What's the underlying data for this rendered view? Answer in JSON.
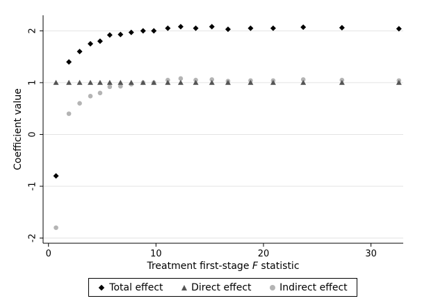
{
  "chart_data": {
    "type": "scatter",
    "title": "",
    "ylabel": "Coefficient value",
    "xlabel_parts": [
      "Treatment first-stage ",
      "F",
      " statistic"
    ],
    "xlim": [
      -0.5,
      33
    ],
    "ylim": [
      -2.1,
      2.3
    ],
    "x_ticks": [
      0,
      10,
      20,
      30
    ],
    "x_tick_labels": [
      "0",
      "10",
      "20",
      "30"
    ],
    "y_ticks": [
      -2,
      -1,
      0,
      1,
      2
    ],
    "y_tick_labels": [
      "-2",
      "-1",
      "0",
      "1",
      "2"
    ],
    "grid": "horizontal",
    "legend_position": "bottom",
    "x": [
      0.7,
      1.9,
      2.9,
      3.9,
      4.8,
      5.7,
      6.7,
      7.7,
      8.8,
      9.8,
      11.1,
      12.3,
      13.7,
      15.2,
      16.7,
      18.8,
      20.9,
      23.7,
      27.3,
      32.6
    ],
    "series": [
      {
        "name": "Total effect",
        "marker": "diamond",
        "color": "#000000",
        "values": [
          -0.8,
          1.4,
          1.6,
          1.75,
          1.8,
          1.92,
          1.93,
          1.97,
          2.0,
          2.0,
          2.05,
          2.08,
          2.05,
          2.08,
          2.03,
          2.05,
          2.05,
          2.07,
          2.06,
          2.04
        ]
      },
      {
        "name": "Direct effect",
        "marker": "triangle",
        "color": "#555555",
        "values": [
          1.0,
          1.0,
          1.0,
          1.0,
          1.0,
          1.0,
          1.0,
          1.0,
          1.0,
          1.0,
          1.0,
          1.0,
          1.0,
          1.0,
          1.0,
          1.0,
          1.0,
          1.0,
          1.0,
          1.0
        ]
      },
      {
        "name": "Indirect effect",
        "marker": "circle",
        "color": "#b4b4b4",
        "values": [
          -1.8,
          0.4,
          0.6,
          0.74,
          0.8,
          0.92,
          0.93,
          0.97,
          1.0,
          1.0,
          1.05,
          1.08,
          1.05,
          1.06,
          1.03,
          1.04,
          1.04,
          1.06,
          1.05,
          1.04
        ]
      }
    ]
  }
}
